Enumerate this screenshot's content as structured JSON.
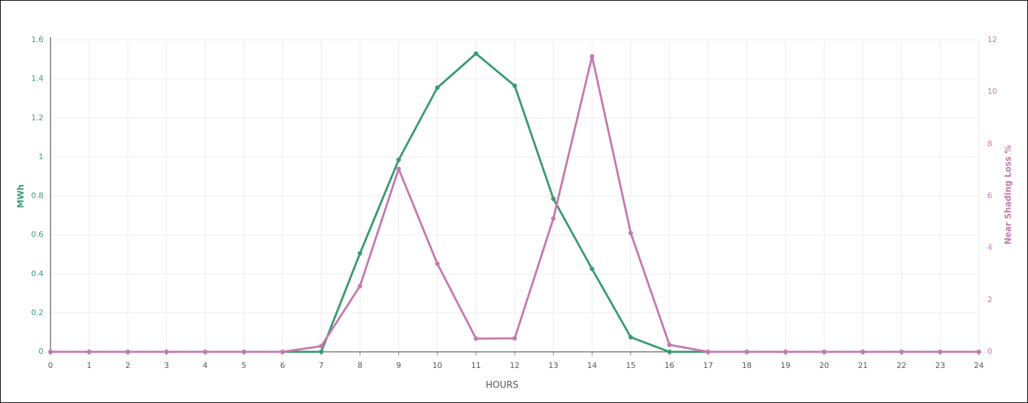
{
  "chart_data": {
    "type": "line",
    "x": [
      0,
      1,
      2,
      3,
      4,
      5,
      6,
      7,
      8,
      9,
      10,
      11,
      12,
      13,
      14,
      15,
      16,
      17,
      18,
      19,
      20,
      21,
      22,
      23,
      24
    ],
    "xlim": [
      0,
      24
    ],
    "xticks": [
      0,
      1,
      2,
      3,
      4,
      5,
      6,
      7,
      8,
      9,
      10,
      11,
      12,
      13,
      14,
      15,
      16,
      17,
      18,
      19,
      20,
      21,
      22,
      23,
      24
    ],
    "xlabel": "HOURS",
    "ylabel": "MWh",
    "ylim": [
      0,
      1.6
    ],
    "yticks": [
      0,
      0.2,
      0.4,
      0.6,
      0.8,
      1,
      1.2,
      1.4,
      1.6
    ],
    "y2label": "Near Shading Loss %",
    "y2lim": [
      0,
      12
    ],
    "y2ticks": [
      0,
      2,
      4,
      6,
      8,
      10,
      12
    ],
    "grid": true,
    "series": [
      {
        "name": "MWh",
        "color": "#3a9a6e",
        "axis": "y",
        "values": [
          0,
          0,
          0,
          0,
          0,
          0,
          0,
          0,
          0.505,
          0.985,
          1.355,
          1.53,
          1.365,
          0.785,
          0.425,
          0.075,
          0,
          0,
          0,
          0,
          0,
          0,
          0,
          0,
          0
        ]
      },
      {
        "name": "Near Shading Loss %",
        "color": "#c47aae",
        "axis": "y2",
        "values": [
          0,
          0,
          0,
          0,
          0,
          0,
          0,
          0.22,
          2.53,
          7.04,
          3.39,
          0.51,
          0.52,
          5.13,
          11.37,
          4.57,
          0.27,
          0,
          0,
          0,
          0,
          0,
          0,
          0,
          0
        ]
      }
    ]
  }
}
